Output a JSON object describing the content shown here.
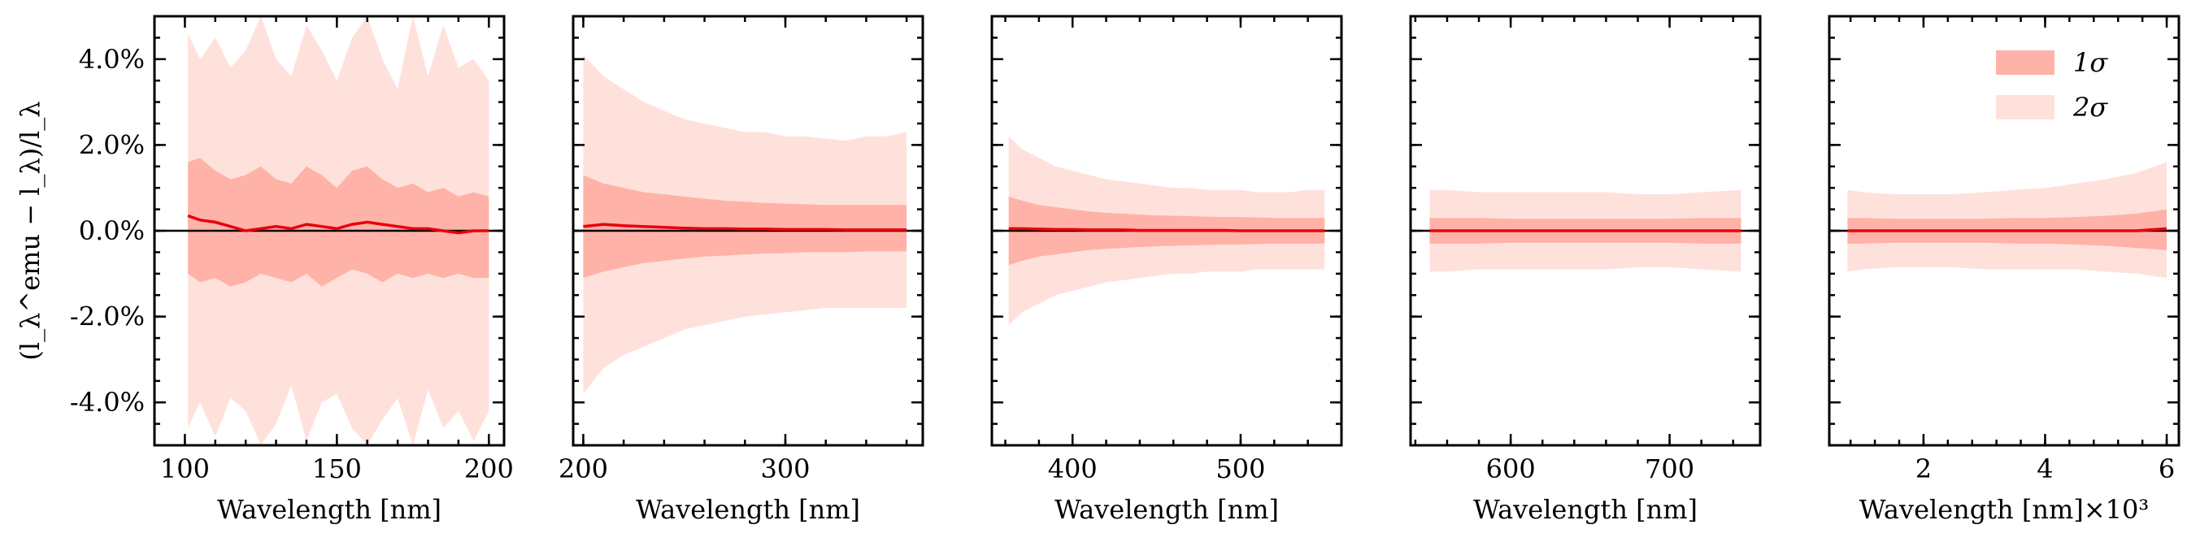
{
  "colors": {
    "one_sigma": "#ffb2a8",
    "two_sigma": "#ffe1dc",
    "median_line": "#e8000b",
    "zero_line": "#000000",
    "axes": "#000000"
  },
  "ylabel": "(l_λ^emu − l_λ)/l_λ",
  "legend": {
    "placement": "top-right",
    "entries": [
      {
        "key": "one_sigma",
        "label": "1σ"
      },
      {
        "key": "two_sigma",
        "label": "2σ"
      }
    ]
  },
  "chart_data": [
    {
      "type": "area",
      "xlabel": "Wavelength [nm]",
      "xlim": [
        90,
        205
      ],
      "ylim": [
        -5,
        5
      ],
      "xticks": [
        100,
        150,
        200
      ],
      "xticklabels": [
        "100",
        "150",
        "200"
      ],
      "yticks": [
        -4,
        -2,
        0,
        2,
        4
      ],
      "yticklabels": [
        "-4.0%",
        "-2.0%",
        "0.0%",
        "2.0%",
        "4.0%"
      ],
      "grid": false,
      "x": [
        101,
        105,
        110,
        115,
        120,
        125,
        130,
        135,
        140,
        145,
        150,
        155,
        160,
        165,
        170,
        175,
        180,
        185,
        190,
        195,
        200
      ],
      "median": [
        0.35,
        0.25,
        0.2,
        0.1,
        0.0,
        0.05,
        0.1,
        0.05,
        0.15,
        0.1,
        0.05,
        0.15,
        0.2,
        0.15,
        0.1,
        0.05,
        0.05,
        0.0,
        -0.05,
        0.0,
        0.0
      ],
      "sigma1_upper": [
        1.6,
        1.7,
        1.4,
        1.2,
        1.3,
        1.5,
        1.2,
        1.1,
        1.5,
        1.3,
        1.0,
        1.4,
        1.5,
        1.2,
        1.0,
        1.1,
        0.9,
        1.0,
        0.8,
        0.9,
        0.8
      ],
      "sigma1_lower": [
        -1.0,
        -1.2,
        -1.1,
        -1.3,
        -1.2,
        -1.0,
        -1.1,
        -1.2,
        -1.0,
        -1.3,
        -1.1,
        -0.9,
        -1.0,
        -1.2,
        -1.0,
        -1.1,
        -1.0,
        -1.1,
        -1.0,
        -1.1,
        -1.1
      ],
      "sigma2_upper": [
        4.6,
        4.0,
        4.5,
        3.8,
        4.2,
        5.0,
        4.0,
        3.6,
        4.8,
        4.2,
        3.5,
        4.5,
        5.0,
        4.0,
        3.3,
        5.0,
        3.6,
        4.8,
        3.8,
        4.0,
        3.5
      ],
      "sigma2_lower": [
        -4.6,
        -4.0,
        -4.8,
        -3.9,
        -4.2,
        -5.0,
        -4.5,
        -3.6,
        -4.9,
        -4.0,
        -3.8,
        -4.6,
        -5.0,
        -4.4,
        -3.9,
        -5.0,
        -3.7,
        -4.6,
        -4.2,
        -4.9,
        -4.2
      ]
    },
    {
      "type": "area",
      "xlabel": "Wavelength [nm]",
      "xlim": [
        195,
        368
      ],
      "ylim": [
        -5,
        5
      ],
      "xticks": [
        200,
        300
      ],
      "xticklabels": [
        "200",
        "300"
      ],
      "yticks": [
        -4,
        -2,
        0,
        2,
        4
      ],
      "yticklabels": [],
      "grid": false,
      "x": [
        200,
        210,
        220,
        230,
        240,
        250,
        260,
        270,
        280,
        290,
        300,
        310,
        320,
        330,
        340,
        350,
        360
      ],
      "median": [
        0.1,
        0.15,
        0.12,
        0.1,
        0.08,
        0.06,
        0.05,
        0.05,
        0.04,
        0.04,
        0.03,
        0.03,
        0.03,
        0.02,
        0.02,
        0.02,
        0.02
      ],
      "sigma1_upper": [
        1.3,
        1.1,
        1.0,
        0.9,
        0.85,
        0.8,
        0.75,
        0.7,
        0.68,
        0.65,
        0.63,
        0.62,
        0.6,
        0.6,
        0.6,
        0.6,
        0.6
      ],
      "sigma1_lower": [
        -1.1,
        -0.95,
        -0.85,
        -0.75,
        -0.7,
        -0.65,
        -0.6,
        -0.58,
        -0.55,
        -0.53,
        -0.52,
        -0.5,
        -0.5,
        -0.5,
        -0.48,
        -0.48,
        -0.48
      ],
      "sigma2_upper": [
        4.1,
        3.6,
        3.3,
        3.0,
        2.8,
        2.6,
        2.5,
        2.4,
        2.3,
        2.3,
        2.2,
        2.2,
        2.15,
        2.1,
        2.2,
        2.2,
        2.3
      ],
      "sigma2_lower": [
        -3.8,
        -3.2,
        -2.9,
        -2.7,
        -2.5,
        -2.3,
        -2.2,
        -2.1,
        -2.0,
        -1.95,
        -1.9,
        -1.85,
        -1.8,
        -1.8,
        -1.8,
        -1.8,
        -1.8
      ]
    },
    {
      "type": "area",
      "xlabel": "Wavelength [nm]",
      "xlim": [
        352,
        560
      ],
      "ylim": [
        -5,
        5
      ],
      "xticks": [
        400,
        500
      ],
      "xticklabels": [
        "400",
        "500"
      ],
      "yticks": [
        -4,
        -2,
        0,
        2,
        4
      ],
      "yticklabels": [],
      "grid": false,
      "x": [
        362,
        370,
        380,
        390,
        400,
        410,
        420,
        430,
        440,
        450,
        460,
        470,
        480,
        490,
        500,
        510,
        520,
        530,
        540,
        550
      ],
      "median": [
        0.05,
        0.05,
        0.04,
        0.03,
        0.03,
        0.02,
        0.02,
        0.02,
        0.01,
        0.01,
        0.01,
        0.01,
        0.01,
        0.01,
        0.0,
        0.0,
        0.0,
        0.0,
        0.0,
        0.0
      ],
      "sigma1_upper": [
        0.8,
        0.7,
        0.6,
        0.55,
        0.5,
        0.45,
        0.42,
        0.4,
        0.38,
        0.36,
        0.35,
        0.34,
        0.33,
        0.32,
        0.32,
        0.31,
        0.3,
        0.3,
        0.3,
        0.3
      ],
      "sigma1_lower": [
        -0.8,
        -0.7,
        -0.6,
        -0.55,
        -0.5,
        -0.45,
        -0.42,
        -0.4,
        -0.38,
        -0.36,
        -0.35,
        -0.34,
        -0.33,
        -0.32,
        -0.32,
        -0.31,
        -0.3,
        -0.3,
        -0.3,
        -0.3
      ],
      "sigma2_upper": [
        2.2,
        1.9,
        1.7,
        1.5,
        1.4,
        1.3,
        1.2,
        1.15,
        1.1,
        1.05,
        1.0,
        1.0,
        0.95,
        0.95,
        0.95,
        0.9,
        0.9,
        0.9,
        0.95,
        0.95
      ],
      "sigma2_lower": [
        -2.2,
        -1.9,
        -1.7,
        -1.5,
        -1.4,
        -1.3,
        -1.2,
        -1.15,
        -1.1,
        -1.05,
        -1.0,
        -1.0,
        -0.95,
        -0.95,
        -0.95,
        -0.9,
        -0.9,
        -0.9,
        -0.9,
        -0.9
      ]
    },
    {
      "type": "area",
      "xlabel": "Wavelength [nm]",
      "xlim": [
        537,
        757
      ],
      "ylim": [
        -5,
        5
      ],
      "xticks": [
        600,
        700
      ],
      "xticklabels": [
        "600",
        "700"
      ],
      "yticks": [
        -4,
        -2,
        0,
        2,
        4
      ],
      "yticklabels": [],
      "grid": false,
      "x": [
        549,
        560,
        580,
        600,
        620,
        640,
        660,
        680,
        700,
        720,
        745
      ],
      "median": [
        0.0,
        0.0,
        0.0,
        0.0,
        0.0,
        0.0,
        0.0,
        0.0,
        0.0,
        0.0,
        0.0
      ],
      "sigma1_upper": [
        0.3,
        0.3,
        0.3,
        0.28,
        0.28,
        0.28,
        0.28,
        0.28,
        0.28,
        0.3,
        0.3
      ],
      "sigma1_lower": [
        -0.3,
        -0.3,
        -0.3,
        -0.28,
        -0.28,
        -0.28,
        -0.28,
        -0.28,
        -0.28,
        -0.3,
        -0.3
      ],
      "sigma2_upper": [
        0.95,
        0.95,
        0.9,
        0.9,
        0.9,
        0.9,
        0.9,
        0.85,
        0.85,
        0.9,
        0.95
      ],
      "sigma2_lower": [
        -0.95,
        -0.95,
        -0.9,
        -0.9,
        -0.9,
        -0.9,
        -0.9,
        -0.85,
        -0.85,
        -0.9,
        -0.95
      ]
    },
    {
      "type": "area",
      "xlabel": "Wavelength [nm]×10³",
      "xlim": [
        0.45,
        6.2
      ],
      "ylim": [
        -5,
        5
      ],
      "xticks": [
        2,
        4,
        6
      ],
      "xticklabels": [
        "2",
        "4",
        "6"
      ],
      "yticks": [
        -4,
        -2,
        0,
        2,
        4
      ],
      "yticklabels": [],
      "grid": false,
      "x": [
        0.75,
        1.0,
        1.5,
        2.0,
        2.5,
        3.0,
        3.5,
        4.0,
        4.5,
        5.0,
        5.5,
        6.0
      ],
      "median": [
        0.0,
        0.0,
        0.0,
        0.0,
        0.0,
        0.0,
        0.0,
        0.0,
        0.0,
        0.0,
        0.0,
        0.05
      ],
      "sigma1_upper": [
        0.3,
        0.3,
        0.28,
        0.28,
        0.28,
        0.28,
        0.3,
        0.3,
        0.32,
        0.35,
        0.4,
        0.5
      ],
      "sigma1_lower": [
        -0.3,
        -0.3,
        -0.28,
        -0.28,
        -0.28,
        -0.28,
        -0.3,
        -0.3,
        -0.32,
        -0.35,
        -0.4,
        -0.45
      ],
      "sigma2_upper": [
        0.95,
        0.9,
        0.85,
        0.85,
        0.85,
        0.9,
        0.95,
        1.0,
        1.1,
        1.2,
        1.35,
        1.6
      ],
      "sigma2_lower": [
        -0.95,
        -0.9,
        -0.85,
        -0.85,
        -0.85,
        -0.9,
        -0.9,
        -0.9,
        -0.9,
        -0.95,
        -1.0,
        -1.1
      ]
    }
  ]
}
